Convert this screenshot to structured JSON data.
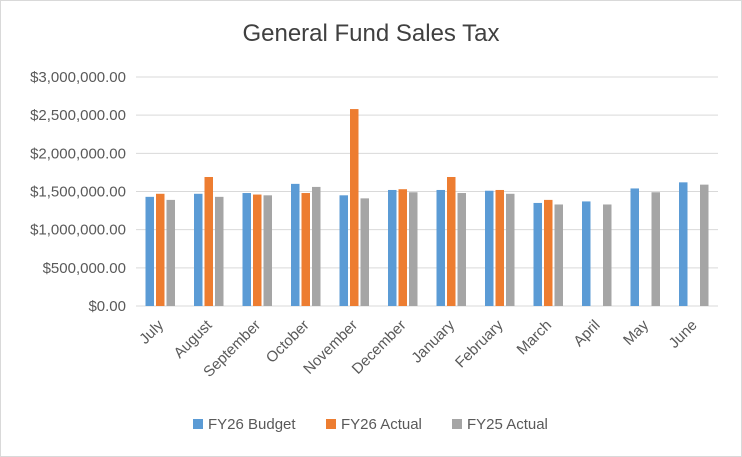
{
  "chart_data": {
    "type": "bar",
    "title": "General Fund Sales Tax",
    "xlabel": "",
    "ylabel": "",
    "ylim": [
      0,
      3000000
    ],
    "yticks": [
      0,
      500000,
      1000000,
      1500000,
      2000000,
      2500000,
      3000000
    ],
    "ytick_labels": [
      "$0.00",
      "$500,000.00",
      "$1,000,000.00",
      "$1,500,000.00",
      "$2,000,000.00",
      "$2,500,000.00",
      "$3,000,000.00"
    ],
    "categories": [
      "July",
      "August",
      "September",
      "October",
      "November",
      "December",
      "January",
      "February",
      "March",
      "April",
      "May",
      "June"
    ],
    "grid": true,
    "legend_position": "bottom",
    "series": [
      {
        "name": "FY26 Budget",
        "color": "#5B9BD5",
        "values": [
          1430000,
          1470000,
          1480000,
          1600000,
          1450000,
          1520000,
          1520000,
          1510000,
          1350000,
          1370000,
          1540000,
          1620000
        ]
      },
      {
        "name": "FY26 Actual",
        "color": "#ED7D31",
        "values": [
          1470000,
          1690000,
          1460000,
          1480000,
          2580000,
          1530000,
          1690000,
          1520000,
          1390000,
          null,
          null,
          null
        ]
      },
      {
        "name": "FY25 Actual",
        "color": "#A5A5A5",
        "values": [
          1390000,
          1430000,
          1450000,
          1560000,
          1410000,
          1490000,
          1480000,
          1470000,
          1330000,
          1330000,
          1490000,
          1590000
        ]
      }
    ]
  }
}
